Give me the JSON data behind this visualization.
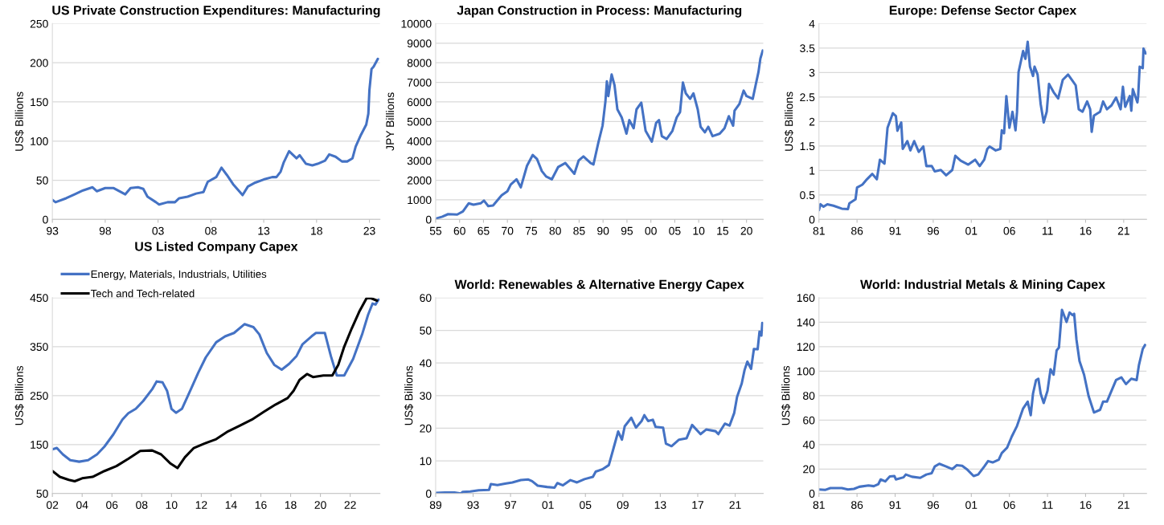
{
  "chart_data": [
    {
      "type": "line",
      "title": "US Private Construction Expenditures: Manufacturing",
      "ylabel": "US$ Billions",
      "grid": "y",
      "xlim": [
        1993,
        2024
      ],
      "ylim": [
        0,
        250
      ],
      "yticks": [
        0,
        50,
        100,
        150,
        200,
        250
      ],
      "xticks": [
        {
          "value": 1993,
          "label": "93"
        },
        {
          "value": 1998,
          "label": "98"
        },
        {
          "value": 2003,
          "label": "03"
        },
        {
          "value": 2008,
          "label": "08"
        },
        {
          "value": 2013,
          "label": "13"
        },
        {
          "value": 2018,
          "label": "18"
        },
        {
          "value": 2023,
          "label": "23"
        }
      ],
      "series": [
        {
          "color": "#4472c4",
          "x": [
            1993.0,
            1993.3,
            1994.3,
            1995.1,
            1995.9,
            1996.8,
            1997.2,
            1998.0,
            1998.8,
            1999.9,
            2000.4,
            2001.1,
            2001.6,
            2002.0,
            2002.8,
            2003.1,
            2003.9,
            2004.6,
            2005.0,
            2005.8,
            2006.6,
            2007.3,
            2007.7,
            2008.5,
            2009.0,
            2009.5,
            2010.1,
            2011.0,
            2011.5,
            2012.2,
            2013.0,
            2013.8,
            2014.2,
            2014.6,
            2014.9,
            2015.4,
            2016.1,
            2016.4,
            2017.0,
            2017.6,
            2018.1,
            2018.8,
            2019.2,
            2019.8,
            2020.4,
            2020.9,
            2021.4,
            2021.7,
            2022.2,
            2022.7,
            2022.9,
            2023.0,
            2023.2,
            2023.4,
            2023.8
          ],
          "values": [
            25,
            22,
            27,
            32,
            37,
            41,
            36,
            40,
            40,
            32,
            40,
            41,
            39,
            29,
            22,
            19,
            22,
            22,
            27,
            29,
            33,
            35,
            48,
            54,
            66,
            57,
            45,
            31,
            42,
            47,
            51,
            54,
            54,
            61,
            73,
            87,
            78,
            82,
            71,
            69,
            71,
            75,
            83,
            80,
            74,
            74,
            78,
            93,
            108,
            121,
            135,
            165,
            192,
            195,
            205
          ]
        }
      ]
    },
    {
      "type": "line",
      "title": "Japan Construction in Process: Manufacturing",
      "ylabel": "JPY Billions",
      "grid": "y",
      "xlim": [
        1955,
        2023.5
      ],
      "ylim": [
        0,
        10000
      ],
      "yticks": [
        0,
        1000,
        2000,
        3000,
        4000,
        5000,
        6000,
        7000,
        8000,
        9000,
        10000
      ],
      "xticks": [
        {
          "value": 1955,
          "label": "55"
        },
        {
          "value": 1960,
          "label": "60"
        },
        {
          "value": 1965,
          "label": "65"
        },
        {
          "value": 1970,
          "label": "70"
        },
        {
          "value": 1975,
          "label": "75"
        },
        {
          "value": 1980,
          "label": "80"
        },
        {
          "value": 1985,
          "label": "85"
        },
        {
          "value": 1990,
          "label": "90"
        },
        {
          "value": 1995,
          "label": "95"
        },
        {
          "value": 2000,
          "label": "00"
        },
        {
          "value": 2005,
          "label": "05"
        },
        {
          "value": 2010,
          "label": "10"
        },
        {
          "value": 2015,
          "label": "15"
        },
        {
          "value": 2020,
          "label": "20"
        }
      ],
      "series": [
        {
          "color": "#4472c4",
          "x": [
            1955.0,
            1956.4,
            1957.6,
            1959.5,
            1960.7,
            1961.9,
            1962.9,
            1964.4,
            1965.1,
            1966.0,
            1967.0,
            1968.8,
            1970.0,
            1970.7,
            1971.9,
            1972.8,
            1974.1,
            1975.3,
            1976.2,
            1977.2,
            1978.1,
            1979.3,
            1980.6,
            1982.1,
            1984.0,
            1984.9,
            1985.9,
            1987.4,
            1988.0,
            1989.0,
            1989.9,
            1990.5,
            1990.8,
            1991.1,
            1991.8,
            1992.4,
            1993.0,
            1993.9,
            1994.9,
            1995.5,
            1996.4,
            1997.0,
            1998.0,
            1998.9,
            2000.2,
            2001.1,
            2001.7,
            2002.3,
            2003.3,
            2004.5,
            2005.4,
            2006.1,
            2006.7,
            2007.3,
            2008.2,
            2008.9,
            2009.8,
            2010.4,
            2011.3,
            2012.0,
            2012.9,
            2014.4,
            2015.4,
            2016.3,
            2017.2,
            2017.5,
            2018.5,
            2019.4,
            2020.0,
            2021.3,
            2021.9,
            2022.5,
            2022.9,
            2023.4
          ],
          "values": [
            40,
            140,
            270,
            250,
            410,
            820,
            750,
            820,
            960,
            680,
            710,
            1230,
            1440,
            1780,
            2050,
            1640,
            2740,
            3290,
            3080,
            2470,
            2190,
            2050,
            2670,
            2880,
            2330,
            3010,
            3220,
            2880,
            2810,
            3900,
            4790,
            6030,
            7050,
            6300,
            7400,
            6850,
            5620,
            5210,
            4380,
            5070,
            4660,
            5620,
            5960,
            4520,
            3970,
            4930,
            5070,
            4250,
            4110,
            4520,
            5210,
            5480,
            6990,
            6440,
            6160,
            6440,
            5620,
            4730,
            4450,
            4730,
            4250,
            4380,
            4660,
            5270,
            4790,
            5550,
            5890,
            6580,
            6300,
            6160,
            6850,
            7530,
            8220,
            8630
          ]
        }
      ]
    },
    {
      "type": "line",
      "title": "Europe: Defense Sector Capex",
      "ylabel": "US$ Billions",
      "grid": "y",
      "xlim": [
        1981,
        2024
      ],
      "ylim": [
        0,
        4
      ],
      "yticks": [
        0,
        0.5,
        1,
        1.5,
        2,
        2.5,
        3,
        3.5,
        4
      ],
      "xticks": [
        {
          "value": 1981,
          "label": "81"
        },
        {
          "value": 1986,
          "label": "86"
        },
        {
          "value": 1991,
          "label": "91"
        },
        {
          "value": 1996,
          "label": "96"
        },
        {
          "value": 2001,
          "label": "01"
        },
        {
          "value": 2006,
          "label": "06"
        },
        {
          "value": 2011,
          "label": "11"
        },
        {
          "value": 2016,
          "label": "16"
        },
        {
          "value": 2021,
          "label": "21"
        }
      ],
      "series": [
        {
          "color": "#4472c4",
          "x": [
            1981.0,
            1981.2,
            1981.6,
            1982.1,
            1982.9,
            1984.0,
            1984.8,
            1985.0,
            1985.8,
            1986.0,
            1986.7,
            1987.3,
            1988.0,
            1988.6,
            1989.0,
            1989.6,
            1990.0,
            1990.7,
            1991.1,
            1991.3,
            1991.8,
            1992.0,
            1992.6,
            1993.0,
            1993.5,
            1994.1,
            1994.7,
            1995.1,
            1995.8,
            1996.2,
            1997.0,
            1997.7,
            1998.5,
            1998.9,
            1999.6,
            2000.6,
            2001.5,
            2002.1,
            2002.7,
            2003.1,
            2003.4,
            2004.2,
            2004.8,
            2005.0,
            2005.3,
            2005.6,
            2006.0,
            2006.4,
            2006.8,
            2007.0,
            2007.2,
            2007.8,
            2008.1,
            2008.4,
            2008.7,
            2009.1,
            2009.3,
            2009.7,
            2010.1,
            2010.5,
            2010.9,
            2011.2,
            2011.8,
            2012.4,
            2013.0,
            2013.7,
            2014.3,
            2014.7,
            2015.1,
            2015.6,
            2016.2,
            2016.6,
            2016.8,
            2017.1,
            2017.9,
            2018.3,
            2018.8,
            2019.4,
            2020.0,
            2020.6,
            2020.9,
            2021.2,
            2021.8,
            2022.0,
            2022.2,
            2022.8,
            2022.9,
            2023.1,
            2023.5,
            2023.6,
            2023.9
          ],
          "values": [
            0.19,
            0.31,
            0.26,
            0.31,
            0.28,
            0.22,
            0.21,
            0.33,
            0.41,
            0.65,
            0.71,
            0.82,
            0.93,
            0.82,
            1.22,
            1.14,
            1.87,
            2.17,
            2.11,
            1.81,
            1.98,
            1.44,
            1.6,
            1.41,
            1.6,
            1.38,
            1.49,
            1.09,
            1.09,
            0.98,
            1.01,
            0.9,
            1.01,
            1.3,
            1.2,
            1.12,
            1.22,
            1.09,
            1.22,
            1.44,
            1.49,
            1.41,
            1.44,
            1.82,
            1.76,
            2.52,
            1.87,
            2.2,
            1.82,
            2.2,
            3.01,
            3.44,
            3.28,
            3.63,
            3.12,
            2.93,
            3.12,
            2.96,
            2.36,
            1.98,
            2.2,
            2.77,
            2.6,
            2.47,
            2.85,
            2.96,
            2.83,
            2.74,
            2.25,
            2.2,
            2.41,
            2.25,
            1.79,
            2.12,
            2.2,
            2.41,
            2.25,
            2.33,
            2.49,
            2.25,
            2.71,
            2.3,
            2.52,
            2.22,
            2.66,
            2.39,
            2.52,
            3.12,
            3.09,
            3.49,
            3.39
          ]
        }
      ]
    },
    {
      "type": "line",
      "title": "US Listed Company Capex",
      "ylabel": "US$ Billions",
      "grid": "y",
      "legend": "top left",
      "xlim": [
        2002,
        2024
      ],
      "ylim": [
        50,
        450
      ],
      "yticks": [
        50,
        150,
        250,
        350,
        450
      ],
      "xticks": [
        {
          "value": 2002,
          "label": "02"
        },
        {
          "value": 2004,
          "label": "04"
        },
        {
          "value": 2006,
          "label": "06"
        },
        {
          "value": 2008,
          "label": "08"
        },
        {
          "value": 2010,
          "label": "10"
        },
        {
          "value": 2012,
          "label": "12"
        },
        {
          "value": 2014,
          "label": "14"
        },
        {
          "value": 2016,
          "label": "16"
        },
        {
          "value": 2018,
          "label": "18"
        },
        {
          "value": 2020,
          "label": "20"
        },
        {
          "value": 2022,
          "label": "22"
        }
      ],
      "series": [
        {
          "name": "Energy, Materials, Industrials, Utilities",
          "color": "#4472c4",
          "x": [
            2002.0,
            2002.3,
            2002.7,
            2003.2,
            2003.8,
            2004.4,
            2005.0,
            2005.5,
            2006.1,
            2006.7,
            2007.1,
            2007.6,
            2008.1,
            2008.7,
            2009.0,
            2009.4,
            2009.7,
            2010.0,
            2010.3,
            2010.7,
            2011.3,
            2011.8,
            2012.3,
            2013.0,
            2013.6,
            2014.2,
            2014.9,
            2015.5,
            2015.9,
            2016.4,
            2016.9,
            2017.4,
            2017.9,
            2018.4,
            2018.8,
            2019.4,
            2019.7,
            2020.3,
            2020.7,
            2021.1,
            2021.6,
            2022.2,
            2022.8,
            2023.2,
            2023.5,
            2023.7,
            2023.9
          ],
          "values": [
            140,
            143,
            130,
            118,
            115,
            118,
            130,
            146,
            171,
            201,
            214,
            223,
            239,
            263,
            279,
            277,
            260,
            223,
            215,
            223,
            263,
            297,
            328,
            359,
            371,
            378,
            396,
            390,
            375,
            337,
            313,
            303,
            315,
            331,
            355,
            371,
            378,
            378,
            331,
            291,
            291,
            325,
            375,
            415,
            438,
            436,
            446
          ]
        },
        {
          "name": "Tech and Tech-related",
          "color": "#000000",
          "x": [
            2002.0,
            2002.5,
            2003.1,
            2003.5,
            2004.0,
            2004.7,
            2005.5,
            2006.3,
            2007.1,
            2007.9,
            2008.7,
            2009.3,
            2009.9,
            2010.4,
            2010.9,
            2011.5,
            2012.2,
            2013.0,
            2013.8,
            2014.6,
            2015.4,
            2016.2,
            2017.0,
            2017.8,
            2018.2,
            2018.6,
            2019.1,
            2019.5,
            2020.2,
            2020.8,
            2021.2,
            2021.6,
            2022.1,
            2022.6,
            2023.1,
            2023.4,
            2023.8
          ],
          "values": [
            96,
            84,
            78,
            75,
            81,
            84,
            96,
            106,
            121,
            137,
            138,
            130,
            112,
            102,
            124,
            143,
            152,
            161,
            177,
            189,
            201,
            217,
            232,
            245,
            260,
            282,
            294,
            288,
            291,
            291,
            313,
            350,
            387,
            421,
            449,
            449,
            444
          ]
        }
      ]
    },
    {
      "type": "line",
      "title": "World: Renewables & Alternative Energy Capex",
      "ylabel": "US$ Billions",
      "grid": "y",
      "xlim": [
        1989,
        2024
      ],
      "ylim": [
        0,
        60
      ],
      "yticks": [
        0,
        10,
        20,
        30,
        40,
        50,
        60
      ],
      "xticks": [
        {
          "value": 1989,
          "label": "89"
        },
        {
          "value": 1993,
          "label": "93"
        },
        {
          "value": 1997,
          "label": "97"
        },
        {
          "value": 2001,
          "label": "01"
        },
        {
          "value": 2005,
          "label": "05"
        },
        {
          "value": 2009,
          "label": "09"
        },
        {
          "value": 2013,
          "label": "13"
        },
        {
          "value": 2017,
          "label": "17"
        },
        {
          "value": 2021,
          "label": "21"
        }
      ],
      "series": [
        {
          "color": "#4472c4",
          "x": [
            1989.0,
            1990.0,
            1991.0,
            1991.7,
            1991.9,
            1992.7,
            1993.6,
            1994.7,
            1994.9,
            1995.6,
            1996.4,
            1997.2,
            1998.1,
            1998.9,
            1999.3,
            1999.9,
            2000.9,
            2001.7,
            2002.0,
            2002.6,
            2003.4,
            2004.1,
            2004.9,
            2005.8,
            2006.1,
            2006.8,
            2007.5,
            2007.9,
            2008.5,
            2008.9,
            2009.2,
            2009.9,
            2010.4,
            2011.0,
            2011.3,
            2011.7,
            2012.2,
            2012.5,
            2013.3,
            2013.6,
            2014.2,
            2015.0,
            2015.8,
            2016.4,
            2017.3,
            2017.9,
            2018.9,
            2019.2,
            2019.9,
            2020.4,
            2020.9,
            2021.2,
            2021.7,
            2022.0,
            2022.3,
            2022.7,
            2023.0,
            2023.4,
            2023.6,
            2023.8,
            2023.9
          ],
          "values": [
            0.2,
            0.3,
            0.3,
            0,
            0.5,
            0.6,
            1.0,
            1.1,
            2.9,
            2.6,
            3.0,
            3.4,
            4.1,
            4.3,
            3.8,
            2.4,
            2.0,
            1.8,
            3.2,
            2.5,
            4.1,
            3.4,
            4.4,
            5.1,
            6.7,
            7.4,
            8.7,
            12.8,
            19.0,
            16.5,
            20.6,
            23.2,
            20.2,
            22.2,
            24.0,
            22.2,
            22.6,
            20.4,
            20.2,
            15.3,
            14.5,
            16.5,
            16.9,
            21.0,
            18.2,
            19.6,
            19.1,
            18.2,
            21.4,
            20.8,
            24.7,
            29.6,
            33.7,
            37.8,
            40.4,
            38.2,
            44.3,
            44.2,
            49.6,
            48.4,
            52.3
          ]
        }
      ]
    },
    {
      "type": "line",
      "title": "World: Industrial Metals & Mining Capex",
      "ylabel": "US$ Billions",
      "grid": "y",
      "xlim": [
        1981,
        2024
      ],
      "ylim": [
        0,
        160
      ],
      "yticks": [
        0,
        20,
        40,
        60,
        80,
        100,
        120,
        140,
        160
      ],
      "xticks": [
        {
          "value": 1981,
          "label": "81"
        },
        {
          "value": 1986,
          "label": "86"
        },
        {
          "value": 1991,
          "label": "91"
        },
        {
          "value": 1996,
          "label": "96"
        },
        {
          "value": 2001,
          "label": "01"
        },
        {
          "value": 2006,
          "label": "06"
        },
        {
          "value": 2011,
          "label": "11"
        },
        {
          "value": 2016,
          "label": "16"
        },
        {
          "value": 2021,
          "label": "21"
        }
      ],
      "series": [
        {
          "color": "#4472c4",
          "x": [
            1981.0,
            1981.8,
            1982.5,
            1984.0,
            1984.8,
            1985.6,
            1986.3,
            1987.5,
            1988.2,
            1988.8,
            1989.1,
            1989.7,
            1990.3,
            1990.9,
            1991.1,
            1992.1,
            1992.4,
            1993.2,
            1994.3,
            1995.1,
            1995.8,
            1996.2,
            1996.8,
            1997.7,
            1998.5,
            1999.1,
            1999.8,
            2000.4,
            2001.3,
            2001.9,
            2002.7,
            2003.2,
            2003.8,
            2004.6,
            2005.0,
            2005.7,
            2006.3,
            2007.0,
            2007.8,
            2008.4,
            2008.8,
            2009.1,
            2009.5,
            2009.8,
            2010.1,
            2010.5,
            2011.0,
            2011.4,
            2011.8,
            2012.2,
            2012.5,
            2012.9,
            2013.5,
            2013.9,
            2014.3,
            2014.5,
            2014.8,
            2015.2,
            2015.8,
            2016.4,
            2017.1,
            2017.9,
            2018.3,
            2018.8,
            2019.4,
            2020.0,
            2020.7,
            2021.3,
            2022.0,
            2022.7,
            2023.0,
            2023.5,
            2023.8
          ],
          "values": [
            3.3,
            2.9,
            4.4,
            4.4,
            3.3,
            3.8,
            5.5,
            6.6,
            6.0,
            7.7,
            11.5,
            9.9,
            13.9,
            14.3,
            11.5,
            13.2,
            15.5,
            13.7,
            12.8,
            15.5,
            16.6,
            22.1,
            24.3,
            22.1,
            19.9,
            23.2,
            22.7,
            19.9,
            14.3,
            15.5,
            22.1,
            26.5,
            25.4,
            27.6,
            33.1,
            37.5,
            46.4,
            55.2,
            69.5,
            75.1,
            64.0,
            81.7,
            92.7,
            93.8,
            81.7,
            74.0,
            83.9,
            101.5,
            97.1,
            117.0,
            119.2,
            150.1,
            140.2,
            147.9,
            145.7,
            146.8,
            125.8,
            108.2,
            97.1,
            79.5,
            66.2,
            68.4,
            75.1,
            75.1,
            83.9,
            92.7,
            94.9,
            89.4,
            93.8,
            92.7,
            104.9,
            118.1,
            121.4
          ]
        }
      ]
    }
  ]
}
